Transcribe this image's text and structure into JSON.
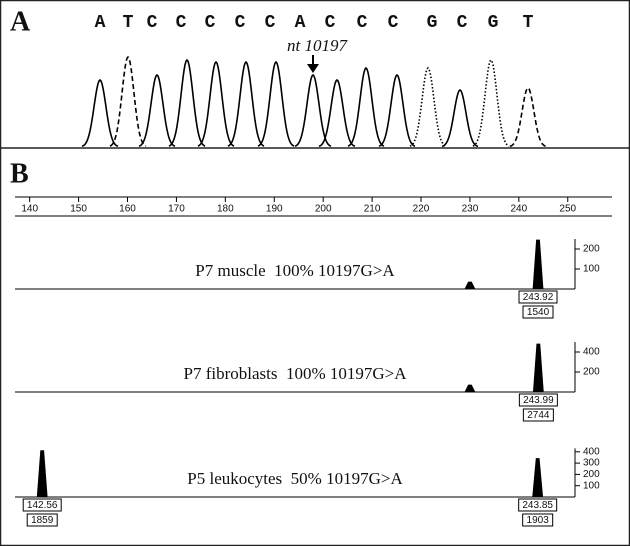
{
  "panel_a": {
    "label": "A",
    "annotation": "nt 10197",
    "sequence": [
      "A",
      "T",
      "C",
      "C",
      "C",
      "C",
      "C",
      "A",
      "C",
      "C",
      "C",
      "G",
      "C",
      "G",
      "T"
    ]
  },
  "panel_b": {
    "label": "B",
    "xlim": [
      137,
      257
    ],
    "xticks": [
      140,
      150,
      160,
      170,
      180,
      190,
      200,
      210,
      220,
      230,
      240,
      250
    ],
    "traces": [
      {
        "caption": "P7 muscle  100% 10197G>A",
        "ylim": [
          0,
          250
        ],
        "yticks": [
          100,
          200
        ],
        "peaks": [
          {
            "size": 230,
            "height": 35
          },
          {
            "size": 243.92,
            "height": 245,
            "area": 1540
          }
        ]
      },
      {
        "caption": "P7 fibroblasts  100% 10197G>A",
        "ylim": [
          0,
          500
        ],
        "yticks": [
          200,
          400
        ],
        "peaks": [
          {
            "size": 230,
            "height": 70
          },
          {
            "size": 243.99,
            "height": 480,
            "area": 2744
          }
        ]
      },
      {
        "caption": "P5 leukocytes  50% 10197G>A",
        "ylim": [
          0,
          430
        ],
        "yticks": [
          100,
          200,
          300,
          400
        ],
        "peaks": [
          {
            "size": 142.56,
            "height": 410,
            "area": 1859
          },
          {
            "size": 243.85,
            "height": 340,
            "area": 1903
          }
        ]
      }
    ]
  }
}
